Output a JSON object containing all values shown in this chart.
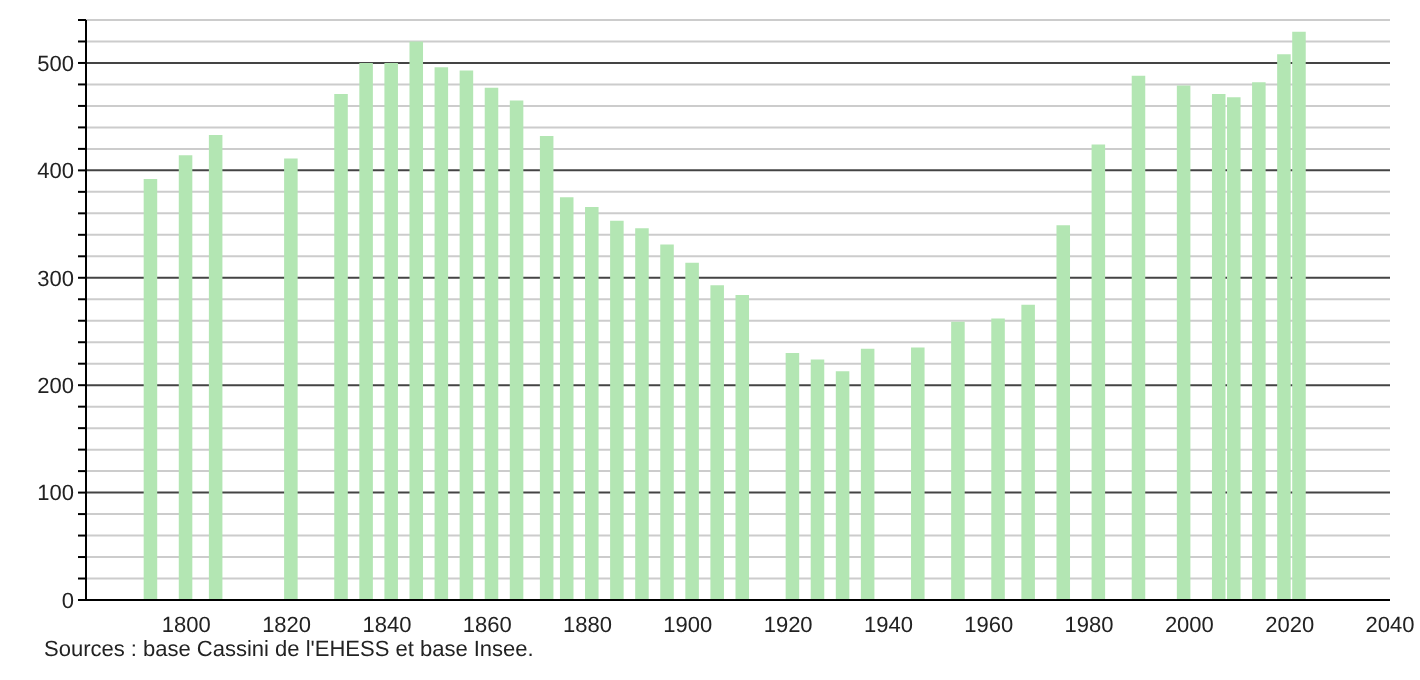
{
  "chart_data": {
    "type": "bar",
    "x": [
      1793,
      1800,
      1806,
      1821,
      1831,
      1836,
      1841,
      1846,
      1851,
      1856,
      1861,
      1866,
      1872,
      1876,
      1881,
      1886,
      1891,
      1896,
      1901,
      1906,
      1911,
      1921,
      1926,
      1931,
      1936,
      1946,
      1954,
      1962,
      1968,
      1975,
      1982,
      1990,
      1999,
      2006,
      2009,
      2014,
      2019,
      2022
    ],
    "values": [
      392,
      414,
      433,
      411,
      471,
      500,
      500,
      520,
      496,
      493,
      477,
      465,
      432,
      375,
      366,
      353,
      346,
      331,
      314,
      293,
      284,
      230,
      224,
      213,
      234,
      235,
      259,
      262,
      275,
      349,
      424,
      488,
      479,
      471,
      468,
      482,
      508,
      529
    ],
    "color": "#b3e6b3",
    "xlim": [
      1780,
      2040
    ],
    "xticks": [
      1800,
      1820,
      1840,
      1860,
      1880,
      1900,
      1920,
      1940,
      1960,
      1980,
      2000,
      2020,
      2040
    ],
    "ylim": [
      0,
      540
    ],
    "yticks": [
      0,
      {
        "value": 20,
        "label": null
      },
      {
        "value": 40,
        "label": null
      },
      {
        "value": 60,
        "label": null
      },
      {
        "value": 80,
        "label": null
      },
      100,
      {
        "value": 120,
        "label": null
      },
      {
        "value": 140,
        "label": null
      },
      {
        "value": 160,
        "label": null
      },
      {
        "value": 180,
        "label": null
      },
      200,
      {
        "value": 220,
        "label": null
      },
      {
        "value": 240,
        "label": null
      },
      {
        "value": 260,
        "label": null
      },
      {
        "value": 280,
        "label": null
      },
      300,
      {
        "value": 320,
        "label": null
      },
      {
        "value": 340,
        "label": null
      },
      {
        "value": 360,
        "label": null
      },
      {
        "value": 380,
        "label": null
      },
      400,
      {
        "value": 420,
        "label": null
      },
      {
        "value": 440,
        "label": null
      },
      {
        "value": 460,
        "label": null
      },
      {
        "value": 480,
        "label": null
      },
      500,
      {
        "value": 520,
        "label": null
      },
      {
        "value": 540,
        "label": null
      }
    ],
    "grid": "y",
    "annotations": [
      "Sources : base Cassini de l'EHESS et base Insee."
    ]
  }
}
